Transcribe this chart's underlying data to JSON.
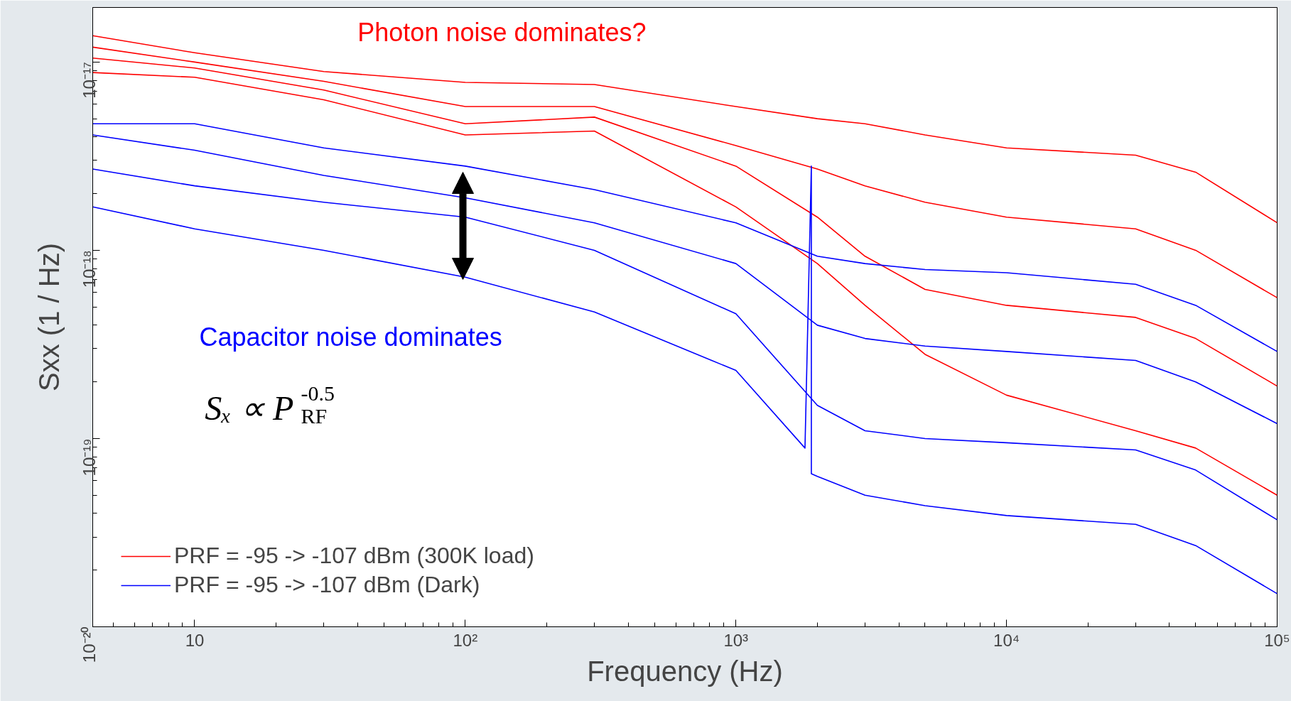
{
  "chart_data": {
    "type": "line",
    "xlabel": "Frequency (Hz)",
    "ylabel": "Sxx (1 / Hz)",
    "log": "xy",
    "grid": false,
    "legend": "bottom left",
    "marker": "none",
    "line_style": "solid",
    "x": [
      4.2,
      10,
      30,
      100,
      300,
      1000,
      2000,
      3000,
      5000,
      10000,
      30000,
      50000,
      100000
    ],
    "xlim": [
      4.2,
      100000
    ],
    "ylim": [
      1e-20,
      1.95e-17
    ],
    "xticks": [
      10,
      {
        "value": 100,
        "label": "10²"
      },
      {
        "value": 1000,
        "label": "10³"
      },
      {
        "value": 10000,
        "label": "10⁴"
      },
      {
        "value": 100000,
        "label": "10⁵"
      }
    ],
    "yticks": [
      {
        "value": 1e-20,
        "label": "10⁻²⁰"
      },
      {
        "value": 1e-19,
        "label": "10⁻¹⁹"
      },
      {
        "value": 1e-18,
        "label": "10⁻¹⁸"
      },
      {
        "value": 1e-17,
        "label": "10⁻¹⁷"
      }
    ],
    "series": [
      {
        "name": "PRF = -95 -> -107 dBm (300K load)",
        "color": "#ff0000",
        "values": [
          1.38e-17,
          1.12e-17,
          8.9e-18,
          7.8e-18,
          7.6e-18,
          5.8e-18,
          5e-18,
          4.7e-18,
          4.1e-18,
          3.5e-18,
          3.2e-18,
          2.6e-18,
          1.4e-18
        ]
      },
      {
        "color": "#ff0000",
        "values": [
          1.2e-17,
          1e-17,
          7.9e-18,
          5.8e-18,
          5.8e-18,
          3.6e-18,
          2.7e-18,
          2.2e-18,
          1.8e-18,
          1.5e-18,
          1.3e-18,
          1e-18,
          5.6e-19
        ]
      },
      {
        "color": "#ff0000",
        "values": [
          1.05e-17,
          9.3e-18,
          7.1e-18,
          4.7e-18,
          5.1e-18,
          2.8e-18,
          1.5e-18,
          9.3e-19,
          6.2e-19,
          5.1e-19,
          4.4e-19,
          3.4e-19,
          1.9e-19
        ]
      },
      {
        "color": "#ff0000",
        "values": [
          8.8e-18,
          8.3e-18,
          6.3e-18,
          4.1e-18,
          4.3e-18,
          1.7e-18,
          8.5e-19,
          5.1e-19,
          2.8e-19,
          1.7e-19,
          1.1e-19,
          8.9e-20,
          5e-20
        ]
      },
      {
        "name": "PRF = -95 -> -107 dBm (Dark)",
        "color": "#0000ff",
        "values": [
          4.7e-18,
          4.7e-18,
          3.5e-18,
          2.8e-18,
          2.1e-18,
          1.4e-18,
          9.3e-19,
          8.5e-19,
          7.9e-19,
          7.6e-19,
          6.6e-19,
          5.1e-19,
          2.9e-19
        ]
      },
      {
        "color": "#0000ff",
        "values": [
          4.1e-18,
          3.4e-18,
          2.5e-18,
          1.9e-18,
          1.4e-18,
          8.5e-19,
          4e-19,
          3.4e-19,
          3.1e-19,
          2.9e-19,
          2.6e-19,
          2e-19,
          1.2e-19
        ]
      },
      {
        "color": "#0000ff",
        "values": [
          2.7e-18,
          2.2e-18,
          1.8e-18,
          1.5e-18,
          1e-18,
          4.6e-19,
          1.5e-19,
          1.1e-19,
          1e-19,
          9.5e-20,
          8.7e-20,
          6.8e-20,
          3.7e-20
        ]
      },
      {
        "color": "#0000ff",
        "x": [
          4.2,
          10,
          30,
          100,
          300,
          1000,
          1800,
          1900,
          1900,
          2000,
          3000,
          5000,
          10000,
          30000,
          50000,
          100000
        ],
        "values": [
          1.7e-18,
          1.3e-18,
          1e-18,
          7.2e-19,
          4.7e-19,
          2.3e-19,
          8.9e-20,
          2.8e-18,
          6.5e-20,
          6.3e-20,
          5e-20,
          4.4e-20,
          3.9e-20,
          3.5e-20,
          2.7e-20,
          1.5e-20
        ]
      }
    ],
    "annotations": [
      "Photon noise dominates?",
      "Capacitor noise dominates",
      "Sₓ ∝ P$_{RF}$$^{-0.5}$"
    ]
  }
}
